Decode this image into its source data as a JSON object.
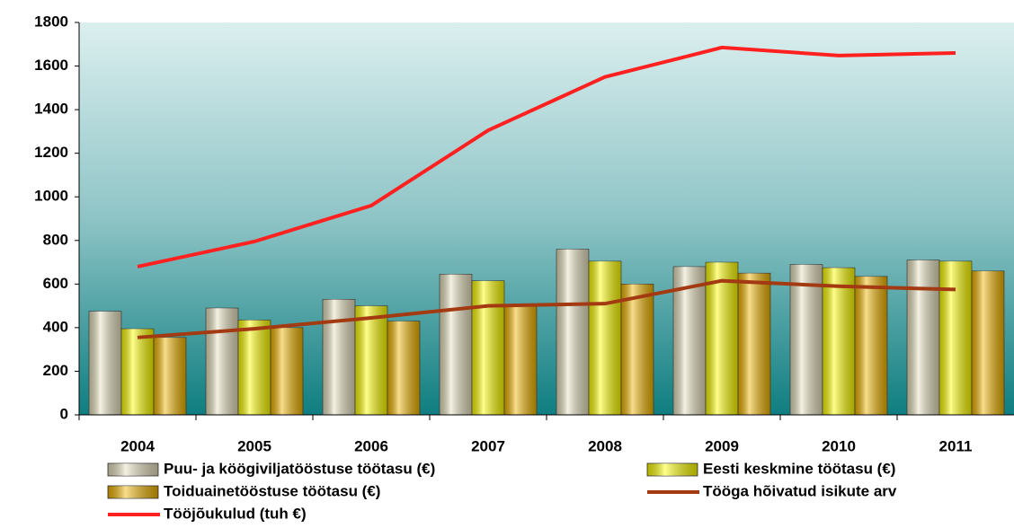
{
  "chart_data": {
    "type": "bar",
    "categories": [
      "2004",
      "2005",
      "2006",
      "2007",
      "2008",
      "2009",
      "2010",
      "2011"
    ],
    "series": [
      {
        "name": "Puu- ja köögiviljatööstuse töötasu (€)",
        "type": "bar",
        "color": "#e8e2c0",
        "values": [
          475,
          490,
          530,
          645,
          760,
          680,
          690,
          710
        ]
      },
      {
        "name": "Eesti keskmine töötasu (€)",
        "type": "bar",
        "color": "#ffff00",
        "values": [
          395,
          435,
          500,
          615,
          705,
          700,
          675,
          705
        ]
      },
      {
        "name": "Toiduainetööstuse töötasu (€)",
        "type": "bar",
        "color": "#f2b600",
        "values": [
          355,
          400,
          430,
          500,
          600,
          650,
          635,
          660
        ]
      },
      {
        "name": "Tööga hõivatud isikute arv",
        "type": "line",
        "color": "#a33a12",
        "values": [
          355,
          395,
          445,
          500,
          510,
          615,
          590,
          575
        ]
      },
      {
        "name": "Tööjõukulud (tuh €)",
        "type": "line",
        "color": "#ff2020",
        "values": [
          680,
          795,
          960,
          1305,
          1550,
          1685,
          1648,
          1660
        ]
      }
    ],
    "ylim": [
      0,
      1800
    ],
    "yticks": [
      0,
      200,
      400,
      600,
      800,
      1000,
      1200,
      1400,
      1600,
      1800
    ],
    "grid": false
  }
}
